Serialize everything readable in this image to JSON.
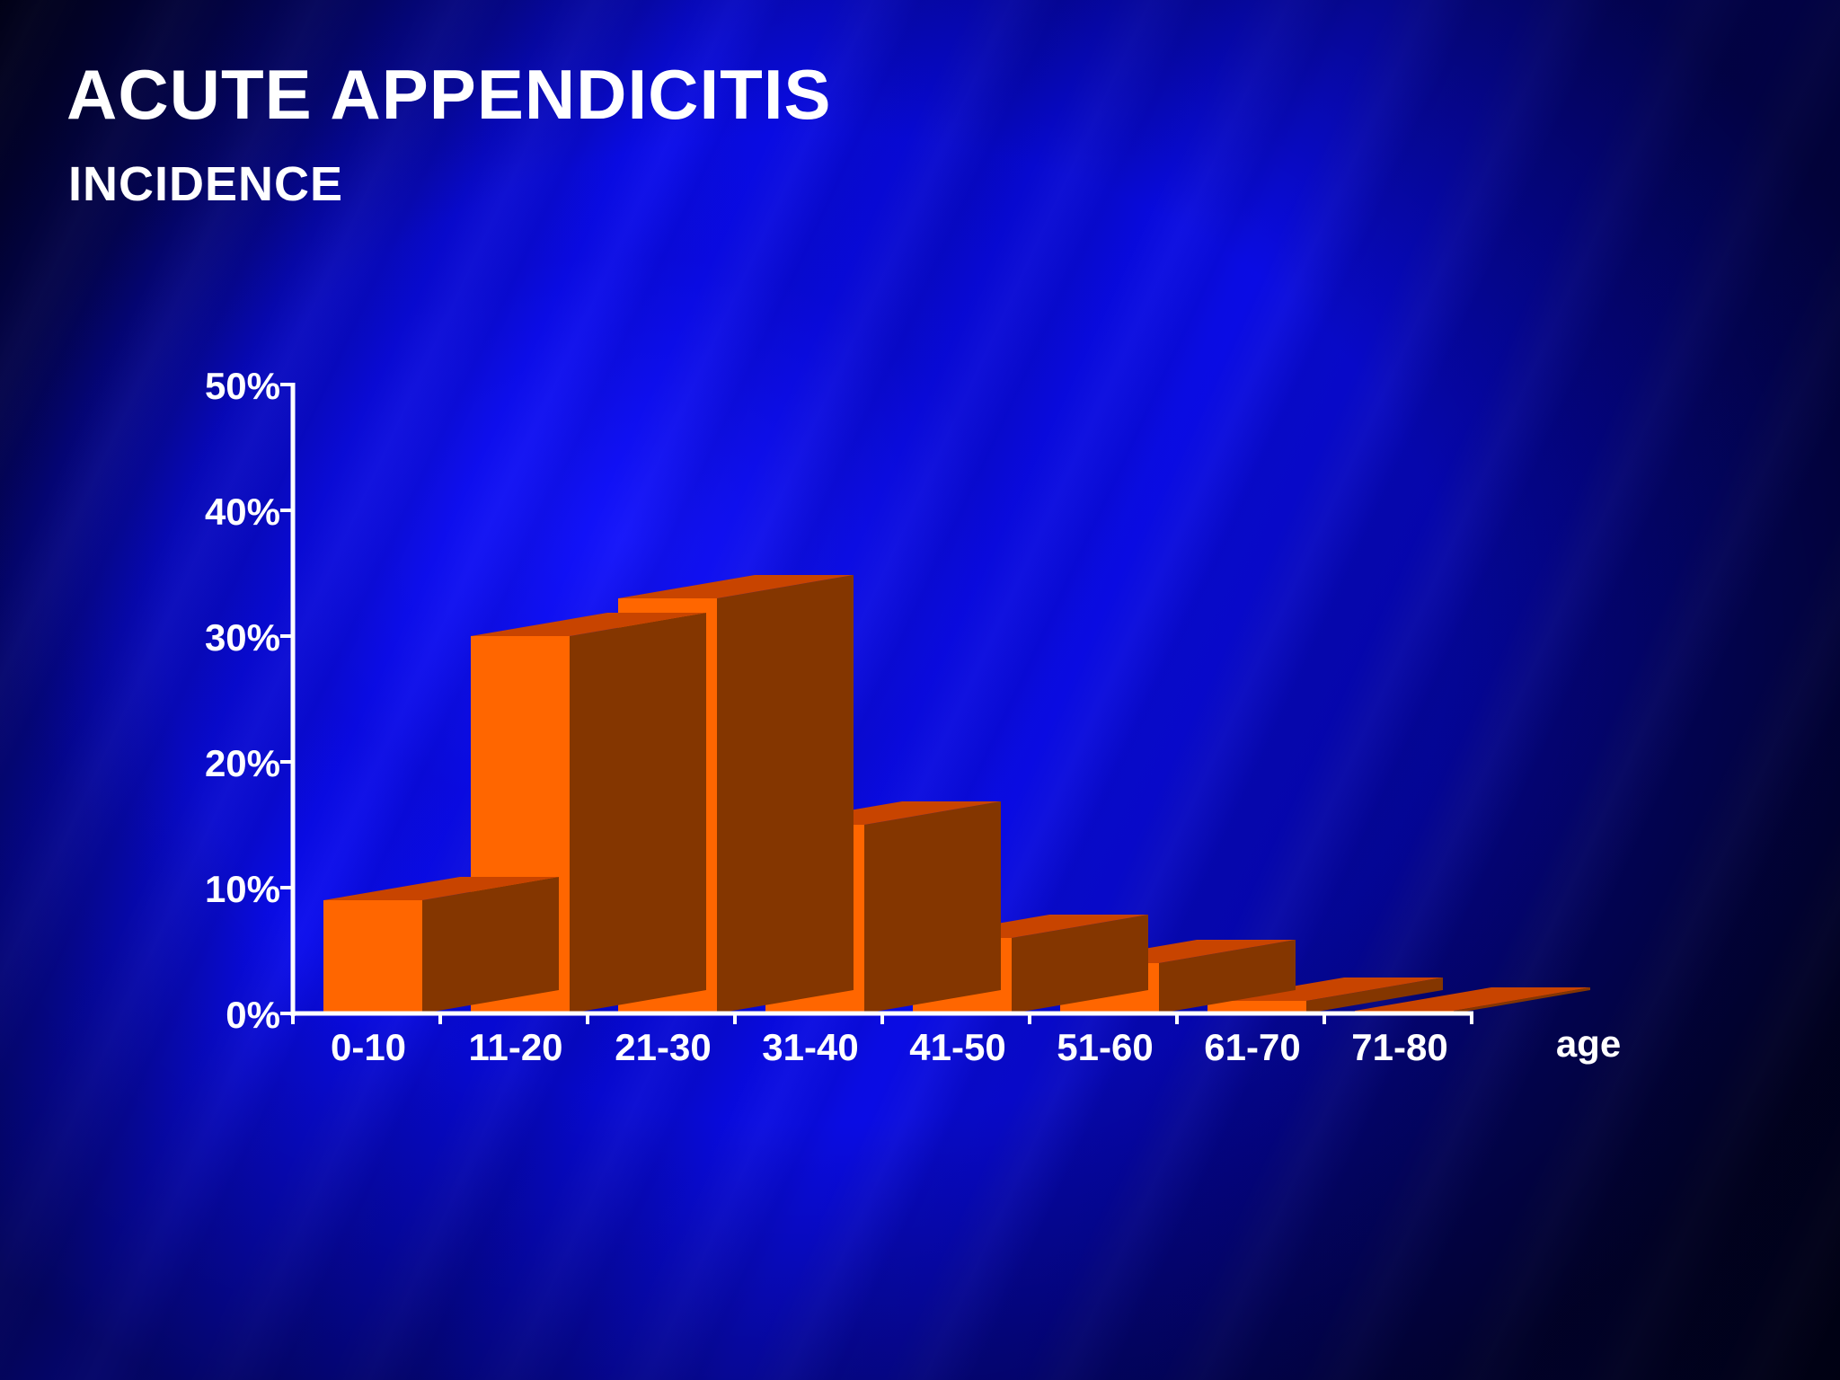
{
  "slide": {
    "title": "ACUTE APPENDICITIS",
    "subtitle": "INCIDENCE"
  },
  "chart_data": {
    "type": "bar",
    "style": "3d",
    "title": "",
    "xlabel": "age",
    "ylabel": "",
    "categories": [
      "0-10",
      "11-20",
      "21-30",
      "31-40",
      "41-50",
      "51-60",
      "61-70",
      "71-80"
    ],
    "values": [
      9,
      30,
      33,
      15,
      6,
      4,
      1,
      0
    ],
    "y_ticks": [
      "0%",
      "10%",
      "20%",
      "30%",
      "40%",
      "50%"
    ],
    "ylim": [
      0,
      50
    ],
    "grid": false,
    "legend": "none",
    "colors": {
      "bar_front": "#ff6600",
      "bar_top": "#c84400",
      "bar_side": "#843600",
      "axis": "#ffffff",
      "background": "#0a0ce0"
    }
  }
}
